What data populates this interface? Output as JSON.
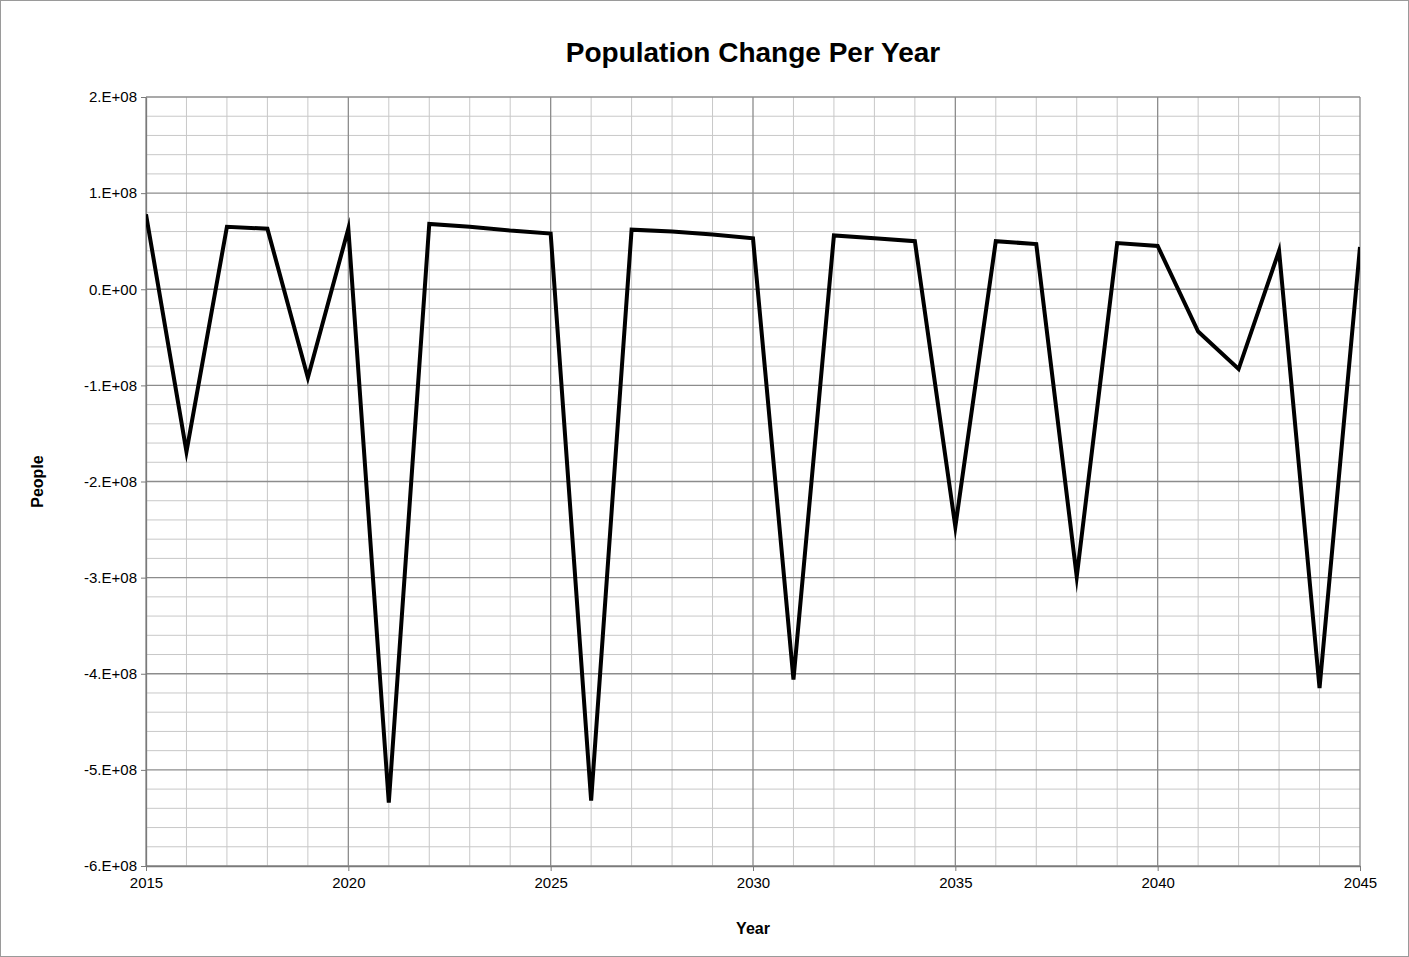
{
  "chart_data": {
    "type": "line",
    "title": "Population Change Per Year",
    "x_label": "Year",
    "y_label": "People",
    "x": [
      2015,
      2016,
      2017,
      2018,
      2019,
      2020,
      2021,
      2022,
      2023,
      2024,
      2025,
      2026,
      2027,
      2028,
      2029,
      2030,
      2031,
      2032,
      2033,
      2034,
      2035,
      2036,
      2037,
      2038,
      2039,
      2040,
      2041,
      2042,
      2043,
      2044,
      2045
    ],
    "values": [
      78000000,
      -169000000,
      65000000,
      63000000,
      -92000000,
      63000000,
      -534000000,
      68000000,
      65000000,
      61000000,
      58000000,
      -532000000,
      62000000,
      60000000,
      57000000,
      53000000,
      -406000000,
      56000000,
      53000000,
      50000000,
      -247000000,
      50000000,
      47000000,
      -299000000,
      48000000,
      45000000,
      -44000000,
      -83000000,
      40000000,
      -415000000,
      44000000
    ],
    "color": "#000000",
    "xlim": [
      2015,
      2045
    ],
    "xticks": [
      2015,
      2020,
      2025,
      2030,
      2035,
      2040,
      2045
    ],
    "ylim": [
      -600000000,
      200000000
    ],
    "yticks": [
      {
        "value": -600000000,
        "label": "-6.E+08"
      },
      {
        "value": -500000000,
        "label": "-5.E+08"
      },
      {
        "value": -400000000,
        "label": "-4.E+08"
      },
      {
        "value": -300000000,
        "label": "-3.E+08"
      },
      {
        "value": -200000000,
        "label": "-2.E+08"
      },
      {
        "value": -100000000,
        "label": "-1.E+08"
      },
      {
        "value": 0,
        "label": "0.E+00"
      },
      {
        "value": 100000000,
        "label": "1.E+08"
      },
      {
        "value": 200000000,
        "label": "2.E+08"
      }
    ],
    "grid": true
  }
}
